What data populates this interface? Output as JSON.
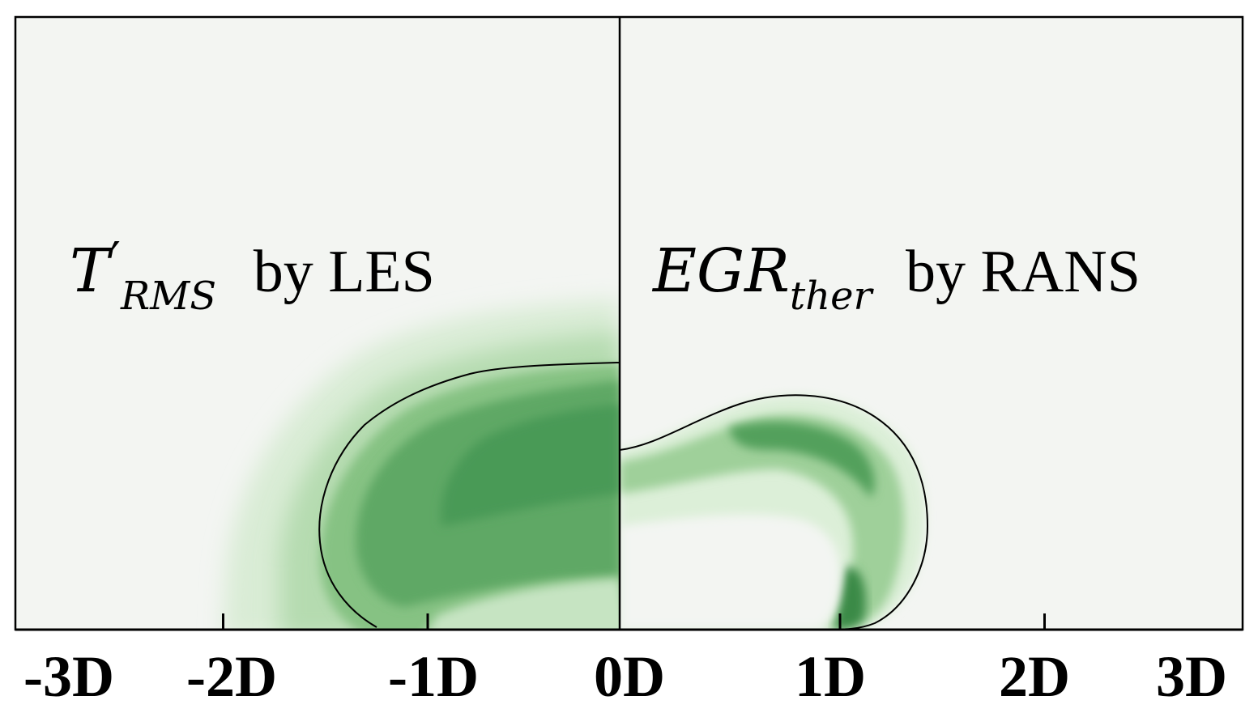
{
  "chart_data": {
    "type": "heatmap",
    "title": "",
    "xlabel": "",
    "ylabel": "",
    "xlim": [
      -3,
      3
    ],
    "x_unit": "D",
    "tick_labels": [
      "-3D",
      "-2D",
      "-1D",
      "0D",
      "1D",
      "2D",
      "3D"
    ],
    "colormap": [
      "#f3f5f2",
      "#e3f0e0",
      "#c5e2c0",
      "#9dcf96",
      "#75b873",
      "#52a05c",
      "#3a8a47",
      "#1e6e32"
    ],
    "panels": [
      {
        "side": "left",
        "label_math": "T",
        "label_prime": "′",
        "label_sub": "RMS",
        "label_text": "by LES",
        "x_range": [
          -3,
          0
        ]
      },
      {
        "side": "right",
        "label_math": "EGR",
        "label_sub": "ther",
        "label_text": "by RANS",
        "x_range": [
          0,
          3
        ]
      }
    ]
  }
}
